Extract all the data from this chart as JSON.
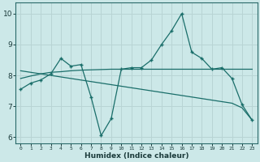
{
  "xlabel": "Humidex (Indice chaleur)",
  "bg_color": "#cce8e8",
  "grid_color": "#b8d4d4",
  "line_color": "#1a6e6a",
  "x_ticks": [
    0,
    1,
    2,
    3,
    4,
    5,
    6,
    7,
    8,
    9,
    10,
    11,
    12,
    13,
    14,
    15,
    16,
    17,
    18,
    19,
    20,
    21,
    22,
    23
  ],
  "ylim": [
    5.8,
    10.35
  ],
  "xlim": [
    -0.5,
    23.5
  ],
  "yticks": [
    6,
    7,
    8,
    9,
    10
  ],
  "series1_x": [
    0,
    1,
    2,
    3,
    4,
    5,
    6,
    7,
    8,
    9,
    10,
    11,
    12,
    13,
    14,
    15,
    16,
    17,
    18,
    19,
    20,
    21,
    22,
    23
  ],
  "series1_y": [
    7.55,
    7.75,
    7.85,
    8.05,
    8.55,
    8.3,
    8.35,
    7.3,
    6.05,
    6.6,
    8.2,
    8.25,
    8.25,
    8.5,
    9.0,
    9.45,
    10.0,
    8.75,
    8.55,
    8.2,
    8.25,
    7.9,
    7.05,
    6.55
  ],
  "series2_x": [
    0,
    1,
    2,
    3,
    4,
    5,
    6,
    7,
    8,
    9,
    10,
    11,
    12,
    13,
    14,
    15,
    16,
    17,
    18,
    19,
    20,
    21,
    22,
    23
  ],
  "series2_y": [
    7.9,
    7.98,
    8.05,
    8.1,
    8.12,
    8.15,
    8.17,
    8.18,
    8.19,
    8.2,
    8.2,
    8.2,
    8.2,
    8.2,
    8.2,
    8.2,
    8.2,
    8.2,
    8.2,
    8.2,
    8.2,
    8.2,
    8.2,
    8.2
  ],
  "series3_x": [
    0,
    1,
    2,
    3,
    4,
    5,
    6,
    7,
    8,
    9,
    10,
    11,
    12,
    13,
    14,
    15,
    16,
    17,
    18,
    19,
    20,
    21,
    22,
    23
  ],
  "series3_y": [
    8.15,
    8.1,
    8.05,
    8.0,
    7.95,
    7.9,
    7.85,
    7.8,
    7.75,
    7.7,
    7.65,
    7.6,
    7.55,
    7.5,
    7.45,
    7.4,
    7.35,
    7.3,
    7.25,
    7.2,
    7.15,
    7.1,
    6.95,
    6.55
  ]
}
